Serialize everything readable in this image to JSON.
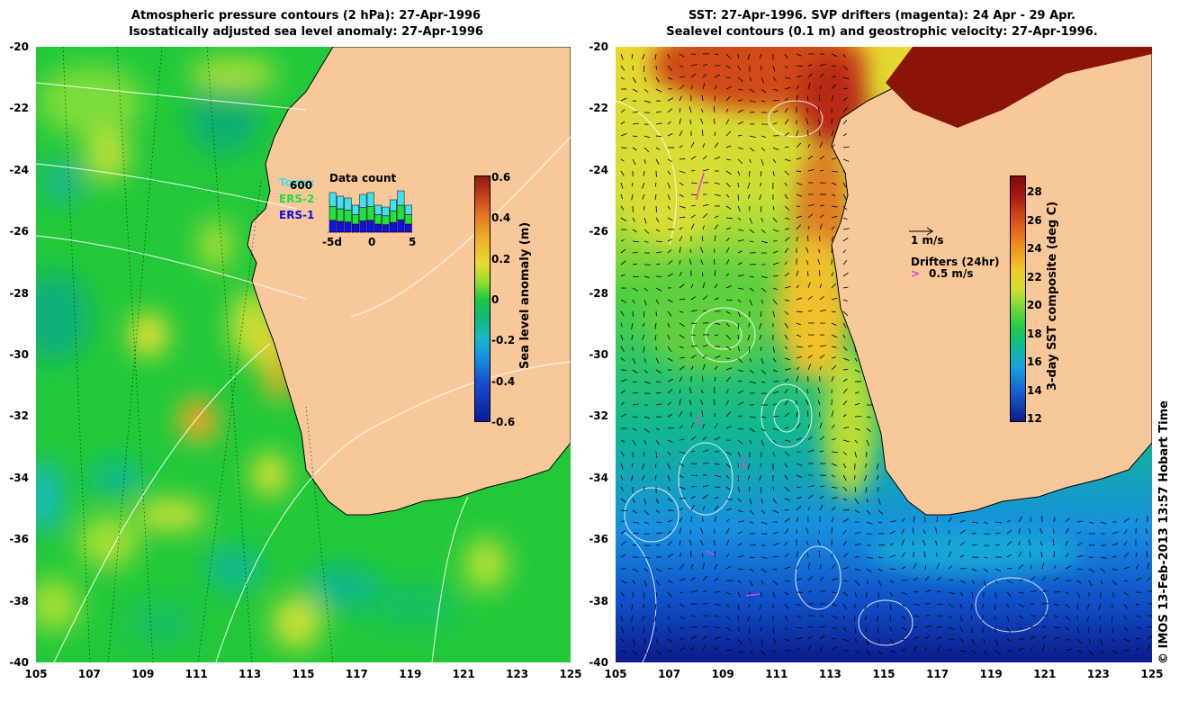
{
  "left_panel": {
    "title_line1": "Atmospheric pressure contours (2 hPa): 27-Apr-1996",
    "title_line2": "Isostatically adjusted sea level anomaly: 27-Apr-1996",
    "y_ticks": [
      "-20",
      "-22",
      "-24",
      "-26",
      "-28",
      "-30",
      "-32",
      "-34",
      "-36",
      "-38",
      "-40"
    ],
    "x_ticks": [
      "105",
      "107",
      "109",
      "111",
      "113",
      "115",
      "117",
      "119",
      "121",
      "123",
      "125"
    ],
    "colorbar": {
      "title": "Sea level anomaly (m)",
      "ticks": [
        "0.6",
        "0.4",
        "0.2",
        "0",
        "-0.2",
        "-0.4",
        "-0.6"
      ]
    },
    "data_count": {
      "title": "Data count",
      "max_label": "600",
      "legend": [
        {
          "label": "Topex",
          "color": "#40e0f0"
        },
        {
          "label": "ERS-2",
          "color": "#20e040"
        },
        {
          "label": "ERS-1",
          "color": "#1010e0"
        }
      ],
      "x_ticks": [
        "-5d",
        "0",
        "5"
      ]
    }
  },
  "right_panel": {
    "title_line1": "SST: 27-Apr-1996. SVP drifters (magenta): 24 Apr - 29 Apr.",
    "title_line2": "Sealevel contours (0.1 m) and geostrophic velocity: 27-Apr-1996.",
    "y_ticks": [
      "-20",
      "-22",
      "-24",
      "-26",
      "-28",
      "-30",
      "-32",
      "-34",
      "-36",
      "-38",
      "-40"
    ],
    "x_ticks": [
      "105",
      "107",
      "109",
      "111",
      "113",
      "115",
      "117",
      "119",
      "121",
      "123",
      "125"
    ],
    "colorbar": {
      "title": "3-day SST composite (deg C)",
      "ticks": [
        "28",
        "26",
        "24",
        "22",
        "20",
        "18",
        "16",
        "14",
        "12"
      ]
    },
    "velocity_legend": "1 m/s",
    "drifter_legend_title": "Drifters (24hr)",
    "drifter_legend_value": "0.5 m/s"
  },
  "credit": "© IMOS 13-Feb-2013 13:57 Hobart Time",
  "colors": {
    "land": "#f8c89a",
    "coastline": "#000000",
    "contour": "#ffffff",
    "drifter": "#e040e0"
  }
}
